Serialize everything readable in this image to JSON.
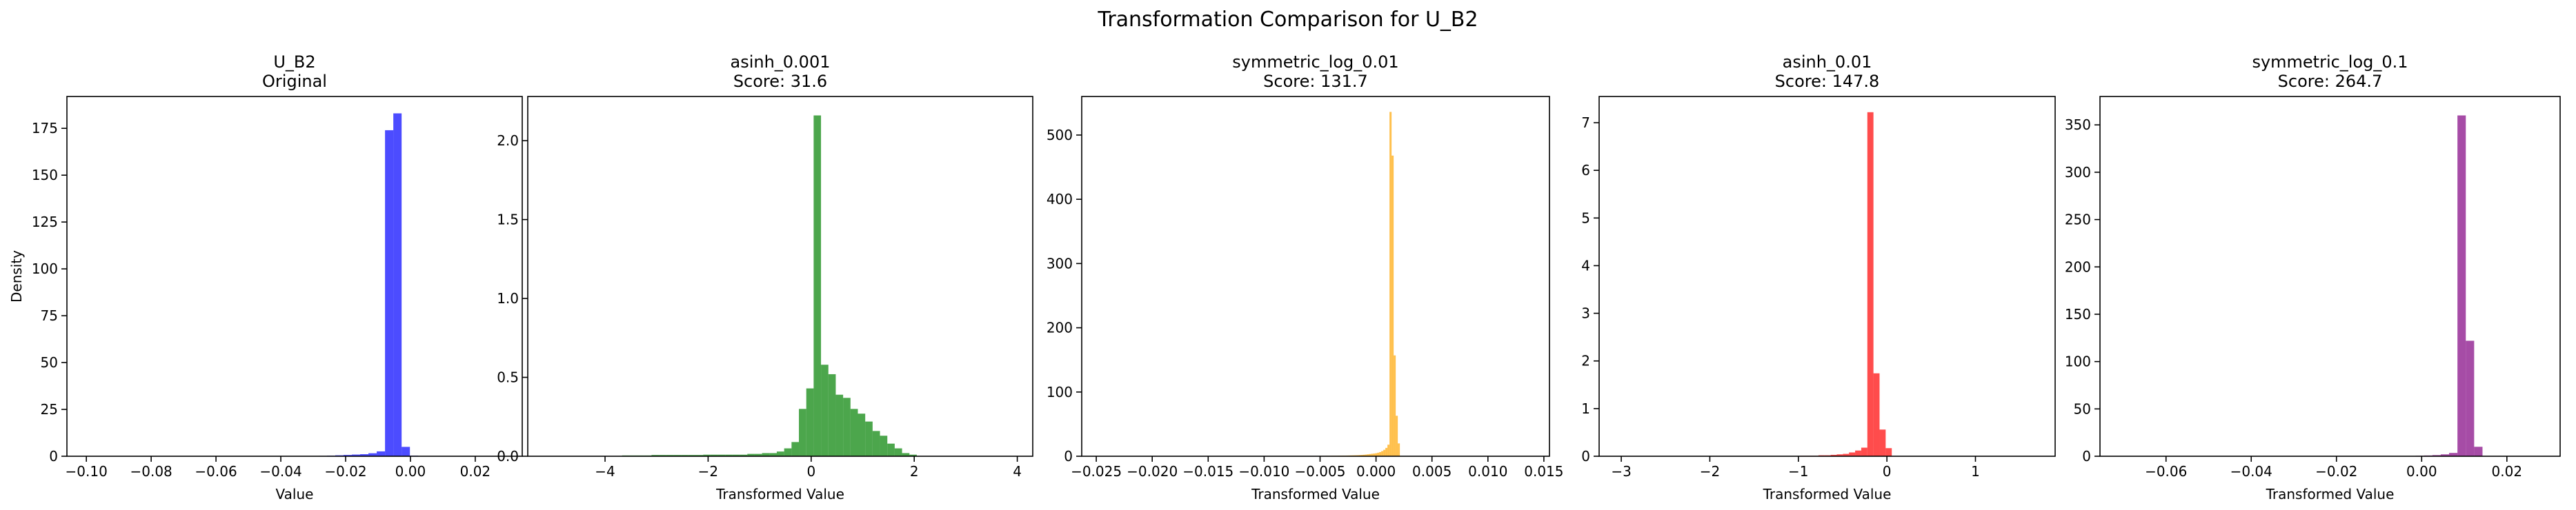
{
  "figure": {
    "suptitle": "Transformation Comparison for U_B2"
  },
  "chart_data": [
    {
      "type": "histogram",
      "title": "U_B2\nOriginal",
      "xlabel": "Value",
      "ylabel": "Density",
      "xlim": [
        -0.106,
        0.0345
      ],
      "ylim": [
        0,
        192
      ],
      "xticks": [
        -0.1,
        -0.08,
        -0.06,
        -0.04,
        -0.02,
        0.0,
        0.02
      ],
      "xtick_labels": [
        "−0.10",
        "−0.08",
        "−0.06",
        "−0.04",
        "−0.02",
        "0.00",
        "0.02"
      ],
      "yticks": [
        0,
        25,
        50,
        75,
        100,
        125,
        150,
        175
      ],
      "ytick_labels": [
        "0",
        "25",
        "50",
        "75",
        "100",
        "125",
        "150",
        "175"
      ],
      "color": "#0000ff",
      "bins": [
        -0.1,
        0.028
      ],
      "values": [
        0,
        0,
        0,
        0,
        0,
        0,
        0,
        0,
        0,
        0,
        0,
        0,
        0,
        0,
        0,
        0,
        0,
        0,
        0,
        0,
        0,
        0,
        0,
        0,
        0,
        0,
        0.1,
        0.1,
        0.2,
        0.3,
        0.5,
        0.7,
        0.9,
        1.1,
        1.6,
        2.6,
        174,
        183,
        5,
        0.3,
        0.1,
        0.1,
        0,
        0,
        0,
        0,
        0,
        0,
        0,
        0
      ]
    },
    {
      "type": "histogram",
      "title": "asinh_0.001\nScore: 31.6",
      "xlabel": "Transformed Value",
      "ylabel": "",
      "xlim": [
        -5.5,
        4.3
      ],
      "ylim": [
        0,
        2.28
      ],
      "xticks": [
        -4,
        -2,
        0,
        2,
        4
      ],
      "xtick_labels": [
        "−4",
        "−2",
        "0",
        "2",
        "4"
      ],
      "yticks": [
        0,
        0.5,
        1.0,
        1.5,
        2.0
      ],
      "ytick_labels": [
        "0.0",
        "0.5",
        "1.0",
        "1.5",
        "2.0"
      ],
      "color": "#008000",
      "bins": [
        -5.1,
        2.05
      ],
      "values": [
        0,
        0,
        0,
        0,
        0,
        0,
        0,
        0,
        0,
        0,
        0.005,
        0.005,
        0.005,
        0.005,
        0.008,
        0.008,
        0.008,
        0.008,
        0.008,
        0.008,
        0.008,
        0.01,
        0.01,
        0.01,
        0.01,
        0.01,
        0.01,
        0.015,
        0.015,
        0.02,
        0.02,
        0.03,
        0.05,
        0.09,
        0.3,
        0.43,
        2.16,
        0.58,
        0.52,
        0.39,
        0.37,
        0.3,
        0.27,
        0.22,
        0.16,
        0.13,
        0.08,
        0.05,
        0.02,
        0.01
      ]
    },
    {
      "type": "histogram",
      "title": "symmetric_log_0.01\nScore: 131.7",
      "xlabel": "Transformed Value",
      "ylabel": "",
      "xlim": [
        -0.0263,
        0.0155
      ],
      "ylim": [
        0,
        560
      ],
      "xticks": [
        -0.025,
        -0.02,
        -0.015,
        -0.01,
        -0.005,
        0.0,
        0.005,
        0.01,
        0.015
      ],
      "xtick_labels": [
        "−0.025",
        "−0.020",
        "−0.015",
        "−0.010",
        "−0.005",
        "0.000",
        "0.005",
        "0.010",
        "0.015"
      ],
      "yticks": [
        0,
        100,
        200,
        300,
        400,
        500
      ],
      "ytick_labels": [
        "0",
        "100",
        "200",
        "300",
        "400",
        "500"
      ],
      "color": "#ffa500",
      "bins": [
        -0.0245,
        0.0025
      ],
      "values": [
        0,
        0,
        0,
        0,
        0,
        0,
        0,
        0,
        0,
        0,
        0,
        0,
        0,
        0,
        0,
        0,
        0,
        0,
        0,
        0,
        0,
        0,
        0,
        0,
        0,
        0,
        0,
        0,
        0,
        0,
        0,
        0,
        0,
        0,
        0,
        0,
        0,
        0,
        0,
        0,
        0,
        0,
        0,
        0,
        0,
        0,
        0,
        0,
        0,
        0,
        0,
        0,
        0,
        0,
        0,
        0,
        0,
        0,
        0,
        0,
        0,
        0,
        0,
        0,
        0,
        0,
        0,
        0,
        0,
        0,
        0,
        0,
        0,
        0,
        0,
        0.2,
        0.2,
        0.2,
        0.2,
        0.2,
        0.2,
        0.2,
        0.2,
        0.2,
        0.2,
        0.2,
        0.3,
        0.3,
        0.3,
        0.3,
        0.3,
        0.3,
        0.3,
        0.3,
        0.3,
        0.3,
        0.3,
        0.4,
        0.4,
        0.4,
        0.4,
        0.5,
        0.5,
        0.5,
        0.5,
        0.6,
        0.6,
        0.6,
        0.7,
        0.7,
        0.7,
        0.8,
        0.8,
        0.8,
        0.9,
        0.9,
        1.0,
        1.0,
        1.1,
        1.2,
        1.3,
        1.4,
        1.5,
        1.6,
        1.8,
        2.0,
        2.3,
        2.6,
        3.0,
        3.4,
        3.8,
        4.2,
        4.7,
        5.5,
        6.5,
        8,
        10,
        13,
        18,
        536,
        468,
        157,
        63,
        20,
        0,
        0
      ]
    },
    {
      "type": "histogram",
      "title": "asinh_0.01\nScore: 147.8",
      "xlabel": "Transformed Value",
      "ylabel": "",
      "xlim": [
        -3.25,
        1.9
      ],
      "ylim": [
        0,
        7.55
      ],
      "xticks": [
        -3,
        -2,
        -1,
        0,
        1
      ],
      "xtick_labels": [
        "−3",
        "−2",
        "−1",
        "0",
        "1"
      ],
      "yticks": [
        0,
        1,
        2,
        3,
        4,
        5,
        6,
        7
      ],
      "ytick_labels": [
        "0",
        "1",
        "2",
        "3",
        "4",
        "5",
        "6",
        "7"
      ],
      "color": "#ff0000",
      "bins": [
        -3.05,
        0.4
      ],
      "values": [
        0,
        0,
        0,
        0,
        0,
        0,
        0,
        0,
        0,
        0,
        0,
        0,
        0,
        0,
        0,
        0,
        0,
        0,
        0,
        0,
        0,
        0,
        0,
        0,
        0,
        0,
        0,
        0,
        0,
        0,
        0.01,
        0.01,
        0.01,
        0.02,
        0.02,
        0.03,
        0.04,
        0.05,
        0.08,
        0.12,
        0.18,
        7.22,
        1.74,
        0.56,
        0.17,
        0,
        0,
        0,
        0,
        0
      ]
    },
    {
      "type": "histogram",
      "title": "symmetric_log_0.1\nScore: 264.7",
      "xlabel": "Transformed Value",
      "ylabel": "",
      "xlim": [
        -0.0755,
        0.0325
      ],
      "ylim": [
        0,
        380
      ],
      "xticks": [
        -0.06,
        -0.04,
        -0.02,
        0.0,
        0.02
      ],
      "xtick_labels": [
        "−0.06",
        "−0.04",
        "−0.02",
        "0.00",
        "0.02"
      ],
      "yticks": [
        0,
        50,
        100,
        150,
        200,
        250,
        300,
        350
      ],
      "ytick_labels": [
        "0",
        "50",
        "100",
        "150",
        "200",
        "250",
        "300",
        "350"
      ],
      "color": "#800080",
      "bins": [
        -0.07,
        0.028
      ],
      "values": [
        0,
        0,
        0,
        0,
        0,
        0,
        0,
        0,
        0,
        0,
        0,
        0,
        0,
        0,
        0,
        0,
        0,
        0,
        0,
        0,
        0,
        0,
        0,
        0,
        0,
        0,
        0,
        0,
        0,
        0,
        0,
        0,
        0,
        0.2,
        0.3,
        0.5,
        0.8,
        1.2,
        2,
        3.5,
        360,
        122,
        10,
        0.3,
        0,
        0,
        0,
        0,
        0,
        0
      ]
    }
  ]
}
